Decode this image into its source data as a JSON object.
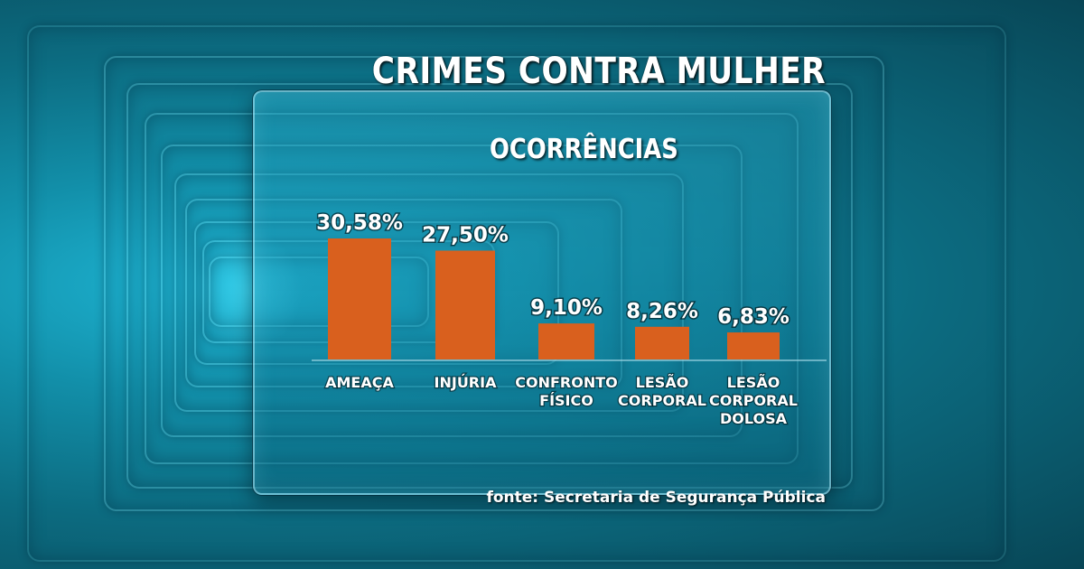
{
  "title": "CRIMES CONTRA MULHER",
  "subtitle": "OCORRÊNCIAS",
  "source": "fonte: Secretaria de Segurança Pública",
  "colors": {
    "bar": "#d9601e",
    "baseline": "#9fd6e4"
  },
  "chart_data": {
    "type": "bar",
    "title": "CRIMES CONTRA MULHER",
    "subtitle": "OCORRÊNCIAS",
    "categories": [
      [
        "AMEAÇA"
      ],
      [
        "INJÚRIA"
      ],
      [
        "CONFRONTO",
        "FÍSICO"
      ],
      [
        "LESÃO",
        "CORPORAL"
      ],
      [
        "LESÃO",
        "CORPORAL",
        "DOLOSA"
      ]
    ],
    "values": [
      30.58,
      27.5,
      9.1,
      8.26,
      6.83
    ],
    "value_labels": [
      "30,58%",
      "27,50%",
      "9,10%",
      "8,26%",
      "6,83%"
    ],
    "unit": "%",
    "grid": false,
    "legend": "none"
  }
}
